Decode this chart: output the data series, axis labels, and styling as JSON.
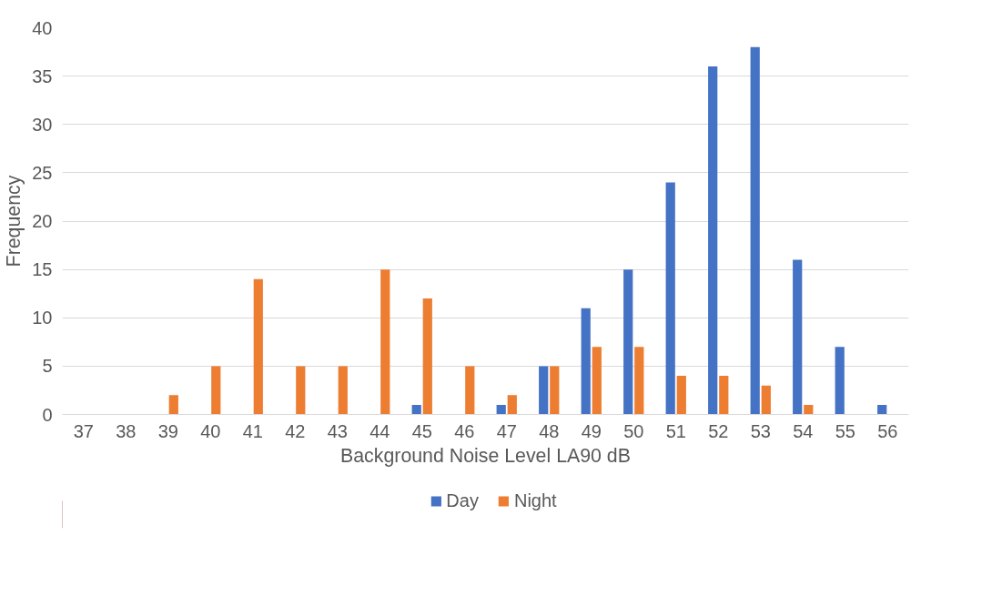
{
  "chart_data": {
    "type": "bar",
    "xlabel": "Background Noise Level LA90 dB",
    "ylabel": "Frequency",
    "categories": [
      "37",
      "38",
      "39",
      "40",
      "41",
      "42",
      "43",
      "44",
      "45",
      "46",
      "47",
      "48",
      "49",
      "50",
      "51",
      "52",
      "53",
      "54",
      "55",
      "56"
    ],
    "series": [
      {
        "name": "Day",
        "color": "#4472c4",
        "values": [
          0,
          0,
          0,
          0,
          0,
          0,
          0,
          0,
          1,
          0,
          1,
          5,
          11,
          15,
          24,
          36,
          38,
          16,
          7,
          1
        ]
      },
      {
        "name": "Night",
        "color": "#ed7d31",
        "values": [
          0,
          0,
          2,
          5,
          14,
          5,
          5,
          15,
          12,
          5,
          2,
          5,
          7,
          7,
          4,
          4,
          3,
          1,
          0,
          0
        ]
      }
    ],
    "ylim": [
      0,
      40
    ],
    "yticks": [
      0,
      5,
      10,
      15,
      20,
      25,
      30,
      35,
      40
    ],
    "grid": "y",
    "legend": "bottom"
  }
}
